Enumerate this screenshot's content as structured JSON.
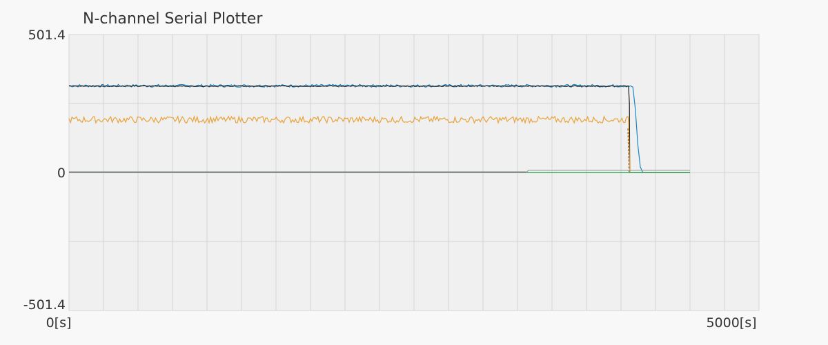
{
  "window": {
    "title": "N-channel Serial Plotter"
  },
  "chart_data": {
    "type": "line",
    "title": "N-channel Serial Plotter",
    "xlabel": "",
    "ylabel": "",
    "xlim": [
      0,
      5000
    ],
    "ylim": [
      -501.4,
      501.4
    ],
    "x_tick_labels": [
      "0[s]",
      "5000[s]"
    ],
    "y_tick_labels": [
      "501.4",
      "0",
      "-501.4"
    ],
    "grid": true,
    "colors": {
      "blue": "#1a86c8",
      "black": "#1a1a1a",
      "orange": "#e8a33a",
      "brown": "#8a5a2b",
      "green": "#3aa860",
      "gray": "#9a9a9a",
      "darkgray": "#666666",
      "gridline": "#d4d4d4",
      "plotbg": "#f0f0f0"
    },
    "series": [
      {
        "color_key": "blue",
        "points": [
          [
            0,
            315
          ],
          [
            4520,
            315
          ],
          [
            4540,
            310
          ],
          [
            4560,
            230
          ],
          [
            4580,
            100
          ],
          [
            4600,
            20
          ],
          [
            4620,
            0
          ],
          [
            5000,
            0
          ]
        ],
        "noise": 5,
        "noise_until": 4520
      },
      {
        "color_key": "black",
        "points": [
          [
            0,
            314
          ],
          [
            4505,
            314
          ],
          [
            4512,
            250
          ],
          [
            4515,
            0
          ],
          [
            5000,
            0
          ]
        ],
        "noise": 1.5,
        "noise_until": 4505
      },
      {
        "color_key": "orange",
        "points": [
          [
            0,
            192
          ],
          [
            4505,
            192
          ],
          [
            4515,
            0
          ],
          [
            5000,
            0
          ]
        ],
        "noise": 12,
        "noise_until": 4505
      },
      {
        "color_key": "brown",
        "points": [
          [
            4500,
            160
          ],
          [
            4510,
            0
          ]
        ],
        "noise": 0,
        "noise_until": 0,
        "dashed": true
      },
      {
        "color_key": "green",
        "points": [
          [
            0,
            0
          ],
          [
            5000,
            0
          ]
        ],
        "noise": 0,
        "noise_until": 0
      },
      {
        "color_key": "gray",
        "points": [
          [
            0,
            0
          ],
          [
            3680,
            0
          ],
          [
            3700,
            8
          ],
          [
            5000,
            8
          ]
        ],
        "noise": 0,
        "noise_until": 0
      },
      {
        "color_key": "darkgray",
        "points": [
          [
            0,
            2
          ],
          [
            3680,
            2
          ]
        ],
        "noise": 0,
        "noise_until": 0
      }
    ]
  }
}
